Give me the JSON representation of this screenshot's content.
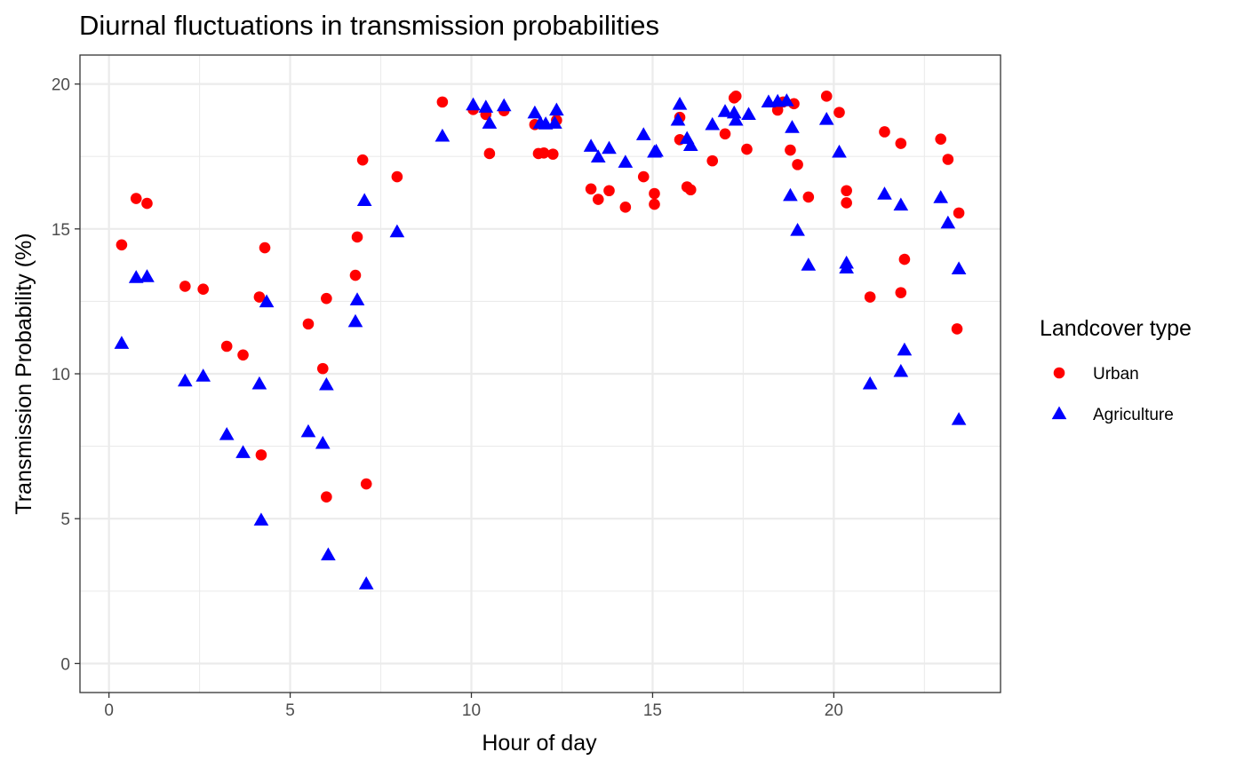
{
  "chart_data": {
    "type": "scatter",
    "title": "Diurnal fluctuations in transmission probabilities",
    "xlabel": "Hour of day",
    "ylabel": "Transmission Probability (%)",
    "xlim": [
      -0.8,
      24.6
    ],
    "ylim": [
      -1.0,
      21.0
    ],
    "x_ticks": [
      0,
      5,
      10,
      15,
      20
    ],
    "y_ticks": [
      0,
      5,
      10,
      15,
      20
    ],
    "grid": true,
    "legend": {
      "title": "Landcover type",
      "position": "right"
    },
    "series": [
      {
        "name": "Urban",
        "color": "#ff0000",
        "marker": "circle",
        "points": [
          [
            0.35,
            14.45
          ],
          [
            0.75,
            16.05
          ],
          [
            1.05,
            15.88
          ],
          [
            2.1,
            13.02
          ],
          [
            2.6,
            12.92
          ],
          [
            3.25,
            10.95
          ],
          [
            3.7,
            10.65
          ],
          [
            4.15,
            12.65
          ],
          [
            4.2,
            7.2
          ],
          [
            4.3,
            14.35
          ],
          [
            5.5,
            11.72
          ],
          [
            5.9,
            10.18
          ],
          [
            6.0,
            12.6
          ],
          [
            6.0,
            5.75
          ],
          [
            6.8,
            13.4
          ],
          [
            6.85,
            14.72
          ],
          [
            7.0,
            17.38
          ],
          [
            7.1,
            6.2
          ],
          [
            7.95,
            16.8
          ],
          [
            9.2,
            19.38
          ],
          [
            10.05,
            19.12
          ],
          [
            10.4,
            18.95
          ],
          [
            10.5,
            17.6
          ],
          [
            10.9,
            19.08
          ],
          [
            11.75,
            18.6
          ],
          [
            11.85,
            17.6
          ],
          [
            12.0,
            17.62
          ],
          [
            12.25,
            17.58
          ],
          [
            12.35,
            18.75
          ],
          [
            13.3,
            16.38
          ],
          [
            13.5,
            16.02
          ],
          [
            13.8,
            16.32
          ],
          [
            14.25,
            15.75
          ],
          [
            14.75,
            16.8
          ],
          [
            15.05,
            16.22
          ],
          [
            15.05,
            15.85
          ],
          [
            15.75,
            18.85
          ],
          [
            15.75,
            18.08
          ],
          [
            15.95,
            16.45
          ],
          [
            16.05,
            16.35
          ],
          [
            16.65,
            17.35
          ],
          [
            17.0,
            18.28
          ],
          [
            17.25,
            19.52
          ],
          [
            17.3,
            19.58
          ],
          [
            17.6,
            17.75
          ],
          [
            18.45,
            19.1
          ],
          [
            18.6,
            19.38
          ],
          [
            18.8,
            17.72
          ],
          [
            18.9,
            19.32
          ],
          [
            19.0,
            17.22
          ],
          [
            19.3,
            16.1
          ],
          [
            19.8,
            19.58
          ],
          [
            20.15,
            19.02
          ],
          [
            20.35,
            16.32
          ],
          [
            20.35,
            15.9
          ],
          [
            21.0,
            12.65
          ],
          [
            21.4,
            18.35
          ],
          [
            21.85,
            17.95
          ],
          [
            21.85,
            12.8
          ],
          [
            21.95,
            13.95
          ],
          [
            22.95,
            18.1
          ],
          [
            23.15,
            17.4
          ],
          [
            23.4,
            11.55
          ],
          [
            23.45,
            15.55
          ]
        ]
      },
      {
        "name": "Agriculture",
        "color": "#0000ff",
        "marker": "triangle",
        "points": [
          [
            0.35,
            11.05
          ],
          [
            0.75,
            13.32
          ],
          [
            1.05,
            13.35
          ],
          [
            2.1,
            9.75
          ],
          [
            2.6,
            9.92
          ],
          [
            3.25,
            7.9
          ],
          [
            3.7,
            7.28
          ],
          [
            4.15,
            9.65
          ],
          [
            4.2,
            4.95
          ],
          [
            4.35,
            12.48
          ],
          [
            5.5,
            8.0
          ],
          [
            5.9,
            7.6
          ],
          [
            6.0,
            9.62
          ],
          [
            6.05,
            3.75
          ],
          [
            6.8,
            11.8
          ],
          [
            6.85,
            12.55
          ],
          [
            7.05,
            15.98
          ],
          [
            7.1,
            2.75
          ],
          [
            7.95,
            14.9
          ],
          [
            9.2,
            18.2
          ],
          [
            10.05,
            19.28
          ],
          [
            10.4,
            19.2
          ],
          [
            10.5,
            18.65
          ],
          [
            10.9,
            19.25
          ],
          [
            11.75,
            19.0
          ],
          [
            11.9,
            18.65
          ],
          [
            12.05,
            18.62
          ],
          [
            12.3,
            18.65
          ],
          [
            12.35,
            19.1
          ],
          [
            13.3,
            17.85
          ],
          [
            13.5,
            17.48
          ],
          [
            13.8,
            17.78
          ],
          [
            14.25,
            17.3
          ],
          [
            14.75,
            18.25
          ],
          [
            15.05,
            17.65
          ],
          [
            15.1,
            17.68
          ],
          [
            15.7,
            18.75
          ],
          [
            15.75,
            19.3
          ],
          [
            15.95,
            18.12
          ],
          [
            16.05,
            17.88
          ],
          [
            16.65,
            18.6
          ],
          [
            17.0,
            19.05
          ],
          [
            17.25,
            19.0
          ],
          [
            17.3,
            18.75
          ],
          [
            17.65,
            18.95
          ],
          [
            18.2,
            19.38
          ],
          [
            18.45,
            19.4
          ],
          [
            18.7,
            19.42
          ],
          [
            18.8,
            16.15
          ],
          [
            18.85,
            18.5
          ],
          [
            19.0,
            14.95
          ],
          [
            19.3,
            13.75
          ],
          [
            19.8,
            18.78
          ],
          [
            20.15,
            17.65
          ],
          [
            20.35,
            13.82
          ],
          [
            20.35,
            13.65
          ],
          [
            21.0,
            9.65
          ],
          [
            21.4,
            16.2
          ],
          [
            21.85,
            15.82
          ],
          [
            21.85,
            10.08
          ],
          [
            21.95,
            10.82
          ],
          [
            22.95,
            16.08
          ],
          [
            23.15,
            15.2
          ],
          [
            23.45,
            13.62
          ],
          [
            23.45,
            8.42
          ]
        ]
      }
    ]
  }
}
